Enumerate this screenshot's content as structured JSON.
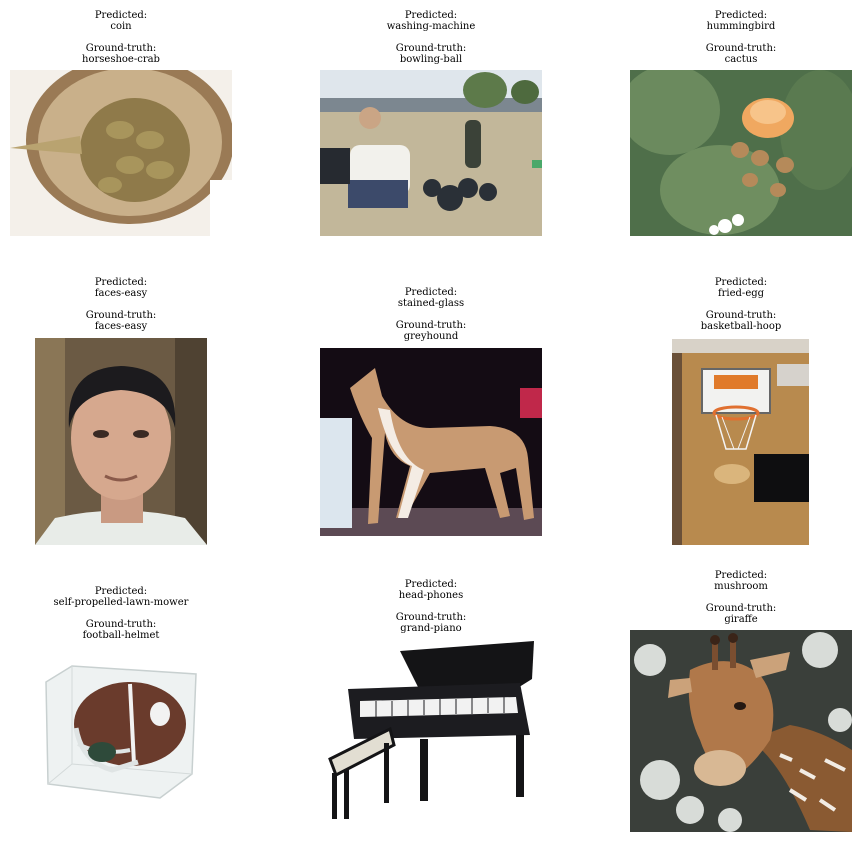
{
  "labels": {
    "predicted": "Predicted:",
    "ground_truth": "Ground-truth:"
  },
  "items": [
    {
      "predicted": "coin",
      "ground_truth": "horseshoe-crab",
      "icon": "horseshoe-crab-photo"
    },
    {
      "predicted": "washing-machine",
      "ground_truth": "bowling-ball",
      "icon": "man-with-telescope-photo"
    },
    {
      "predicted": "hummingbird",
      "ground_truth": "cactus",
      "icon": "cactus-flower-photo"
    },
    {
      "predicted": "faces-easy",
      "ground_truth": "faces-easy",
      "icon": "face-portrait-photo"
    },
    {
      "predicted": "stained-glass",
      "ground_truth": "greyhound",
      "icon": "greyhound-photo"
    },
    {
      "predicted": "fried-egg",
      "ground_truth": "basketball-hoop",
      "icon": "basketball-hoop-photo"
    },
    {
      "predicted": "self-propelled-lawn-mower",
      "ground_truth": "football-helmet",
      "icon": "football-helmet-photo"
    },
    {
      "predicted": "head-phones",
      "ground_truth": "grand-piano",
      "icon": "grand-piano-photo"
    },
    {
      "predicted": "mushroom",
      "ground_truth": "giraffe",
      "icon": "giraffe-photo"
    }
  ]
}
